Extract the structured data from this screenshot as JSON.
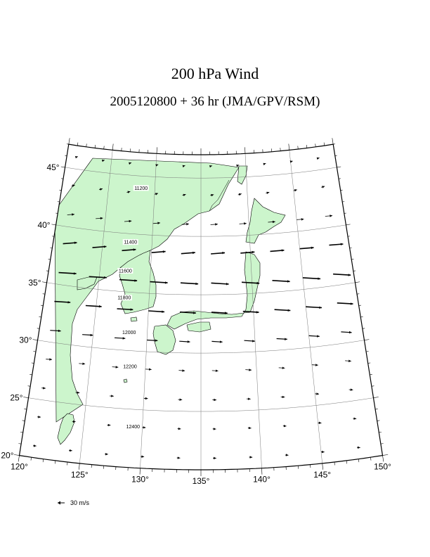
{
  "title": "200 hPa Wind",
  "subtitle": "2005120800 + 36 hr (JMA/GPV/RSM)",
  "map": {
    "lon_range": [
      120,
      150
    ],
    "lat_range": [
      20,
      47
    ],
    "lon_ticks": [
      {
        "value": 120,
        "label": "120°"
      },
      {
        "value": 125,
        "label": "125°"
      },
      {
        "value": 130,
        "label": "130°"
      },
      {
        "value": 135,
        "label": "135°"
      },
      {
        "value": 140,
        "label": "140°"
      },
      {
        "value": 145,
        "label": "145°"
      },
      {
        "value": 150,
        "label": "150°"
      }
    ],
    "lat_ticks": [
      {
        "value": 20,
        "label": "20°"
      },
      {
        "value": 25,
        "label": "25°"
      },
      {
        "value": 30,
        "label": "30°"
      },
      {
        "value": 35,
        "label": "35°"
      },
      {
        "value": 40,
        "label": "40°"
      },
      {
        "value": 45,
        "label": "45°"
      }
    ],
    "land_color": "#ccf5cc",
    "contour_color": "#000000"
  },
  "contours": [
    {
      "level": 11200,
      "label": "11200",
      "major": true
    },
    {
      "level": 11400,
      "label": "11400",
      "major": true
    },
    {
      "level": 11600,
      "label": "11600",
      "major": true
    },
    {
      "level": 11800,
      "label": "11800",
      "major": true
    },
    {
      "level": 12000,
      "label": "12000",
      "major": true
    },
    {
      "level": 12200,
      "label": "12200",
      "major": true
    },
    {
      "level": 12400,
      "label": "12400",
      "major": true
    }
  ],
  "legend": {
    "arrow_label": "30 m/s",
    "reference_speed": 30
  }
}
